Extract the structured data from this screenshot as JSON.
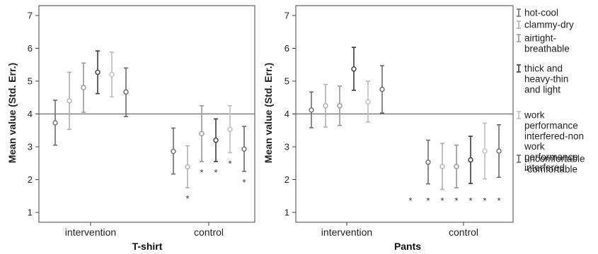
{
  "chart_data": [
    {
      "type": "errorbar",
      "xtitle": "T-shirt",
      "ylabel": "Mean value (Std. Err.)",
      "ylim": [
        0.7,
        7.3
      ],
      "yticks": [
        1,
        2,
        3,
        4,
        5,
        6,
        7
      ],
      "reference_line": 4,
      "categories": [
        "intervention",
        "control"
      ],
      "series": [
        {
          "name": "hot-cool",
          "values": [
            {
              "mean": 3.73,
              "low": 3.05,
              "high": 4.42,
              "sig": false
            },
            {
              "mean": 2.86,
              "low": 2.17,
              "high": 3.57,
              "sig": false
            }
          ]
        },
        {
          "name": "clammy-dry",
          "values": [
            {
              "mean": 4.4,
              "low": 3.53,
              "high": 5.27,
              "sig": false
            },
            {
              "mean": 2.39,
              "low": 1.75,
              "high": 3.03,
              "sig": true
            }
          ]
        },
        {
          "name": "airtight-breathable",
          "values": [
            {
              "mean": 4.8,
              "low": 4.05,
              "high": 5.55,
              "sig": false
            },
            {
              "mean": 3.4,
              "low": 2.55,
              "high": 4.25,
              "sig": true
            }
          ]
        },
        {
          "name": "thick and heavy-thin and light",
          "values": [
            {
              "mean": 5.27,
              "low": 4.62,
              "high": 5.92,
              "sig": false
            },
            {
              "mean": 3.2,
              "low": 2.55,
              "high": 3.85,
              "sig": true
            }
          ]
        },
        {
          "name": "work performance interfered-non work performance interfered",
          "values": [
            {
              "mean": 5.2,
              "low": 4.52,
              "high": 5.88,
              "sig": false
            },
            {
              "mean": 3.53,
              "low": 2.82,
              "high": 4.25,
              "sig": true
            }
          ]
        },
        {
          "name": "uncomfortable-comfortable",
          "values": [
            {
              "mean": 4.67,
              "low": 3.92,
              "high": 5.4,
              "sig": false
            },
            {
              "mean": 2.93,
              "low": 2.25,
              "high": 3.62,
              "sig": true
            }
          ]
        }
      ]
    },
    {
      "type": "errorbar",
      "xtitle": "Pants",
      "ylabel": "Mean value (Std. Err.)",
      "ylim": [
        0.7,
        7.3
      ],
      "yticks": [
        1,
        2,
        3,
        4,
        5,
        6,
        7
      ],
      "reference_line": 4,
      "categories": [
        "intervention",
        "control"
      ],
      "series": [
        {
          "name": "hot-cool",
          "values": [
            {
              "mean": 4.12,
              "low": 3.58,
              "high": 4.67,
              "sig": false
            },
            {
              "mean": 2.53,
              "low": 1.87,
              "high": 3.2,
              "sig": true
            }
          ]
        },
        {
          "name": "clammy-dry",
          "values": [
            {
              "mean": 4.25,
              "low": 3.6,
              "high": 4.9,
              "sig": false
            },
            {
              "mean": 2.4,
              "low": 1.7,
              "high": 3.1,
              "sig": true
            }
          ]
        },
        {
          "name": "airtight-breathable",
          "values": [
            {
              "mean": 4.25,
              "low": 3.65,
              "high": 4.85,
              "sig": false
            },
            {
              "mean": 2.4,
              "low": 1.75,
              "high": 3.05,
              "sig": true
            }
          ]
        },
        {
          "name": "thick and heavy-thin and light",
          "values": [
            {
              "mean": 5.37,
              "low": 4.72,
              "high": 6.03,
              "sig": false
            },
            {
              "mean": 2.6,
              "low": 1.88,
              "high": 3.32,
              "sig": true
            }
          ]
        },
        {
          "name": "work performance interfered-non work performance interfered",
          "values": [
            {
              "mean": 4.37,
              "low": 3.75,
              "high": 5.0,
              "sig": false
            },
            {
              "mean": 2.87,
              "low": 2.02,
              "high": 3.72,
              "sig": true
            }
          ]
        },
        {
          "name": "uncomfortable-comfortable",
          "values": [
            {
              "mean": 4.75,
              "low": 4.03,
              "high": 5.47,
              "sig": false
            },
            {
              "mean": 2.87,
              "low": 2.07,
              "high": 3.67,
              "sig": true
            }
          ]
        }
      ]
    }
  ],
  "legend": {
    "items": [
      {
        "lines": [
          "hot-cool"
        ],
        "color": "#6e6e6e"
      },
      {
        "lines": [
          "clammy-dry"
        ],
        "color": "#b0b0b0"
      },
      {
        "lines": [
          "airtight-",
          "breathable"
        ],
        "color": "#989898"
      },
      {
        "lines": [
          "thick and",
          "heavy-thin",
          "and light"
        ],
        "color": "#3c3c3c"
      },
      {
        "lines": [
          "work",
          "performance",
          "interfered-non",
          "work",
          "performance",
          "interfered"
        ],
        "color": "#bebebe"
      },
      {
        "lines": [
          "uncomfortable",
          "-comfortable"
        ],
        "color": "#6a6a6a"
      }
    ],
    "series_colors": [
      "#6e6e6e",
      "#b0b0b0",
      "#989898",
      "#3c3c3c",
      "#bebebe",
      "#6a6a6a"
    ],
    "significance_marker": "*"
  }
}
